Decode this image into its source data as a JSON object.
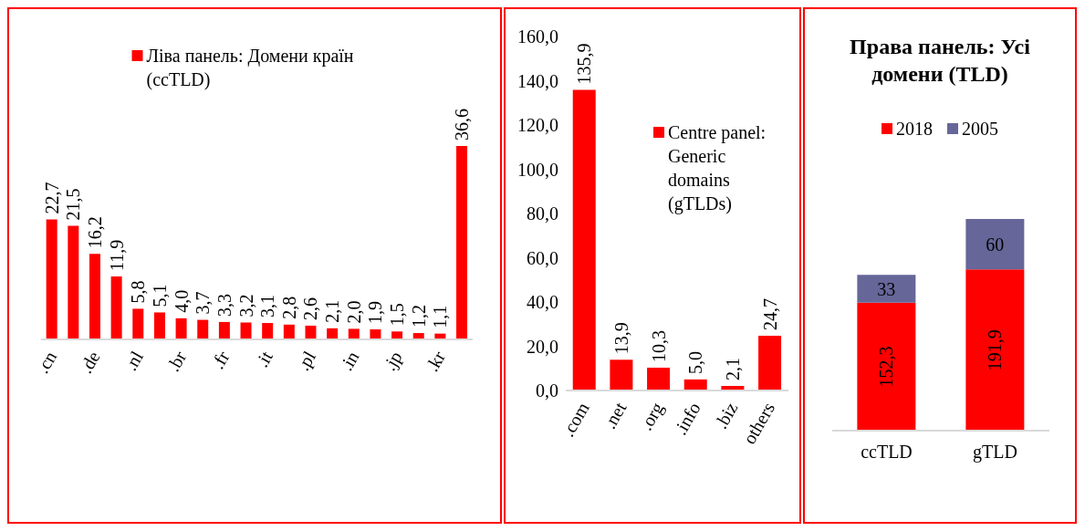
{
  "chart_data": [
    {
      "type": "bar",
      "categories": [
        ".cn",
        null,
        ".de",
        null,
        ".nl",
        null,
        ".br",
        null,
        ".fr",
        null,
        ".it",
        null,
        ".pl",
        null,
        ".in",
        null,
        ".jp",
        null,
        ".kr",
        null
      ],
      "legend": "top",
      "series": [
        {
          "name": "Ліва панель: Домени країн (ccTLD)",
          "color": "#ff0000",
          "values": [
            22.7,
            21.5,
            16.2,
            11.9,
            5.8,
            5.1,
            4.0,
            3.7,
            3.3,
            3.2,
            3.1,
            2.8,
            2.6,
            2.1,
            2.0,
            1.9,
            1.5,
            1.2,
            1.1,
            36.6
          ],
          "value_labels": [
            "22,7",
            "21,5",
            "16,2",
            "11,9",
            "5,8",
            "5,1",
            "4,0",
            "3,7",
            "3,3",
            "3,2",
            "3,1",
            "2,8",
            "2,6",
            "2,1",
            "2,0",
            "1,9",
            "1,5",
            "1,2",
            "1,1",
            "36,6"
          ]
        }
      ]
    },
    {
      "type": "bar",
      "categories": [
        ".com",
        ".net",
        ".org",
        ".info",
        ".biz",
        "others"
      ],
      "legend": "top right",
      "ylim": [
        0,
        160
      ],
      "yticks": [
        {
          "value": 0,
          "label": "0,0"
        },
        {
          "value": 20,
          "label": "20,0"
        },
        {
          "value": 40,
          "label": "40,0"
        },
        {
          "value": 60,
          "label": "60,0"
        },
        {
          "value": 80,
          "label": "80,0"
        },
        {
          "value": 100,
          "label": "100,0"
        },
        {
          "value": 120,
          "label": "120,0"
        },
        {
          "value": 140,
          "label": "140,0"
        },
        {
          "value": 160,
          "label": "160,0"
        }
      ],
      "series": [
        {
          "name": "Centre panel: Generic domains (gTLDs)",
          "color": "#ff0000",
          "values": [
            135.9,
            13.9,
            10.3,
            5.0,
            2.1,
            24.7
          ],
          "value_labels": [
            "135,9",
            "13,9",
            "10,3",
            "5,0",
            "2,1",
            "24,7"
          ]
        }
      ]
    },
    {
      "type": "bar",
      "title": "Права панель: Усі домени (TLD)",
      "categories": [
        "ccTLD",
        "gTLD"
      ],
      "stacked": true,
      "legend": "top",
      "series": [
        {
          "name": "2018",
          "color": "#ff0000",
          "values": [
            152.3,
            191.9
          ],
          "value_labels": [
            "152,3",
            "191,9"
          ]
        },
        {
          "name": "2005",
          "color": "#666699",
          "values": [
            33,
            60
          ],
          "value_labels": [
            "33",
            "60"
          ]
        }
      ]
    }
  ]
}
